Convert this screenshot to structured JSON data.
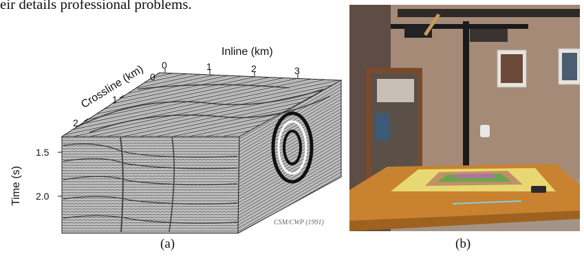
{
  "top_text": "eir details professional problems.",
  "figure_a": {
    "label": "(a)",
    "inline_label": "Inline (km)",
    "crossline_label": "Crossline (km)",
    "time_label": "Time (s)",
    "inline_ticks": [
      "0",
      "1",
      "2",
      "3"
    ],
    "crossline_ticks": [
      "0",
      "1",
      "2"
    ],
    "time_ticks": [
      "1.5",
      "2.0"
    ],
    "credit": "CSM/CWP (1991)"
  },
  "figure_b": {
    "label": "(b)"
  }
}
